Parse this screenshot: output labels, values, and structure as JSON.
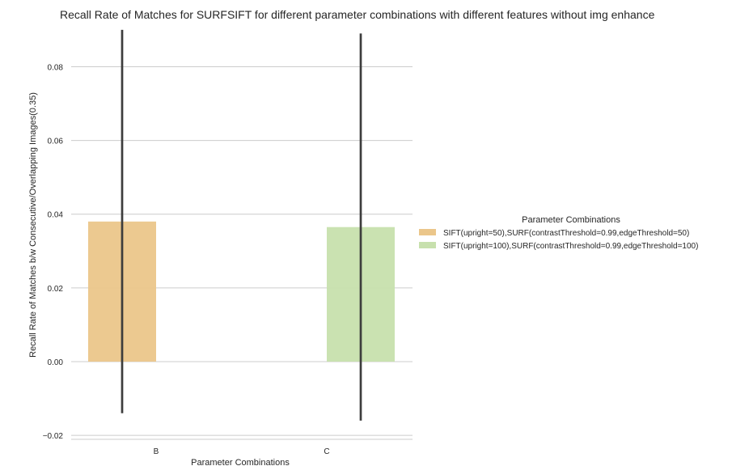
{
  "chart_data": {
    "type": "bar",
    "title": "Recall Rate of Matches for SURFSIFT for different parameter combinations with different features without img enhance",
    "xlabel": "Parameter Combinations",
    "ylabel": "Recall Rate of Matches b/w Consecutive/Overlapping Images(0.35)",
    "categories": [
      "B",
      "C"
    ],
    "ylim": [
      -0.022,
      0.092
    ],
    "yticks": [
      -0.02,
      0.0,
      0.02,
      0.04,
      0.06,
      0.08
    ],
    "ytick_labels": [
      "−0.02",
      "0.00",
      "0.02",
      "0.04",
      "0.06",
      "0.08"
    ],
    "grid": "horizontal",
    "legend": {
      "title": "Parameter Combinations",
      "placement": "right"
    },
    "series": [
      {
        "name": "SIFT(upright=50),SURF(contrastThreshold=0.99,edgeThreshold=50)",
        "color": "#ebc68a",
        "values": [
          0.038,
          null
        ],
        "error": [
          [
            -0.014,
            0.09
          ],
          null
        ]
      },
      {
        "name": "SIFT(upright=100),SURF(contrastThreshold=0.99,edgeThreshold=100)",
        "color": "#c7e0ad",
        "values": [
          null,
          0.0365
        ],
        "error": [
          null,
          [
            -0.016,
            0.089
          ]
        ]
      }
    ]
  }
}
